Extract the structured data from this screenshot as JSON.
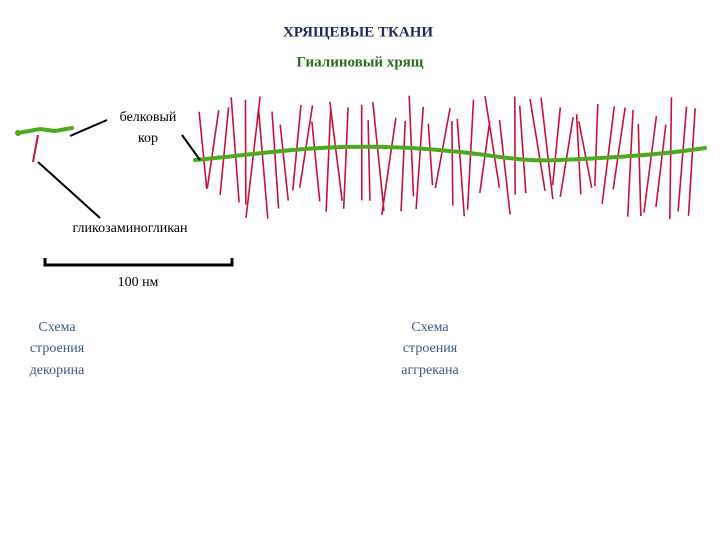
{
  "header": {
    "title": "ХРЯЩЕВЫЕ ТКАНИ",
    "subtitle": "Гиалиновый хрящ"
  },
  "labels": {
    "core": [
      "белковый",
      "кор"
    ],
    "gag": "гликозаминогликан",
    "scale": "100 нм"
  },
  "captions": {
    "decorin": [
      "Схема",
      "строения",
      "декорина"
    ],
    "aggrecan": [
      "Схема",
      "строения",
      "аггрекана"
    ]
  }
}
